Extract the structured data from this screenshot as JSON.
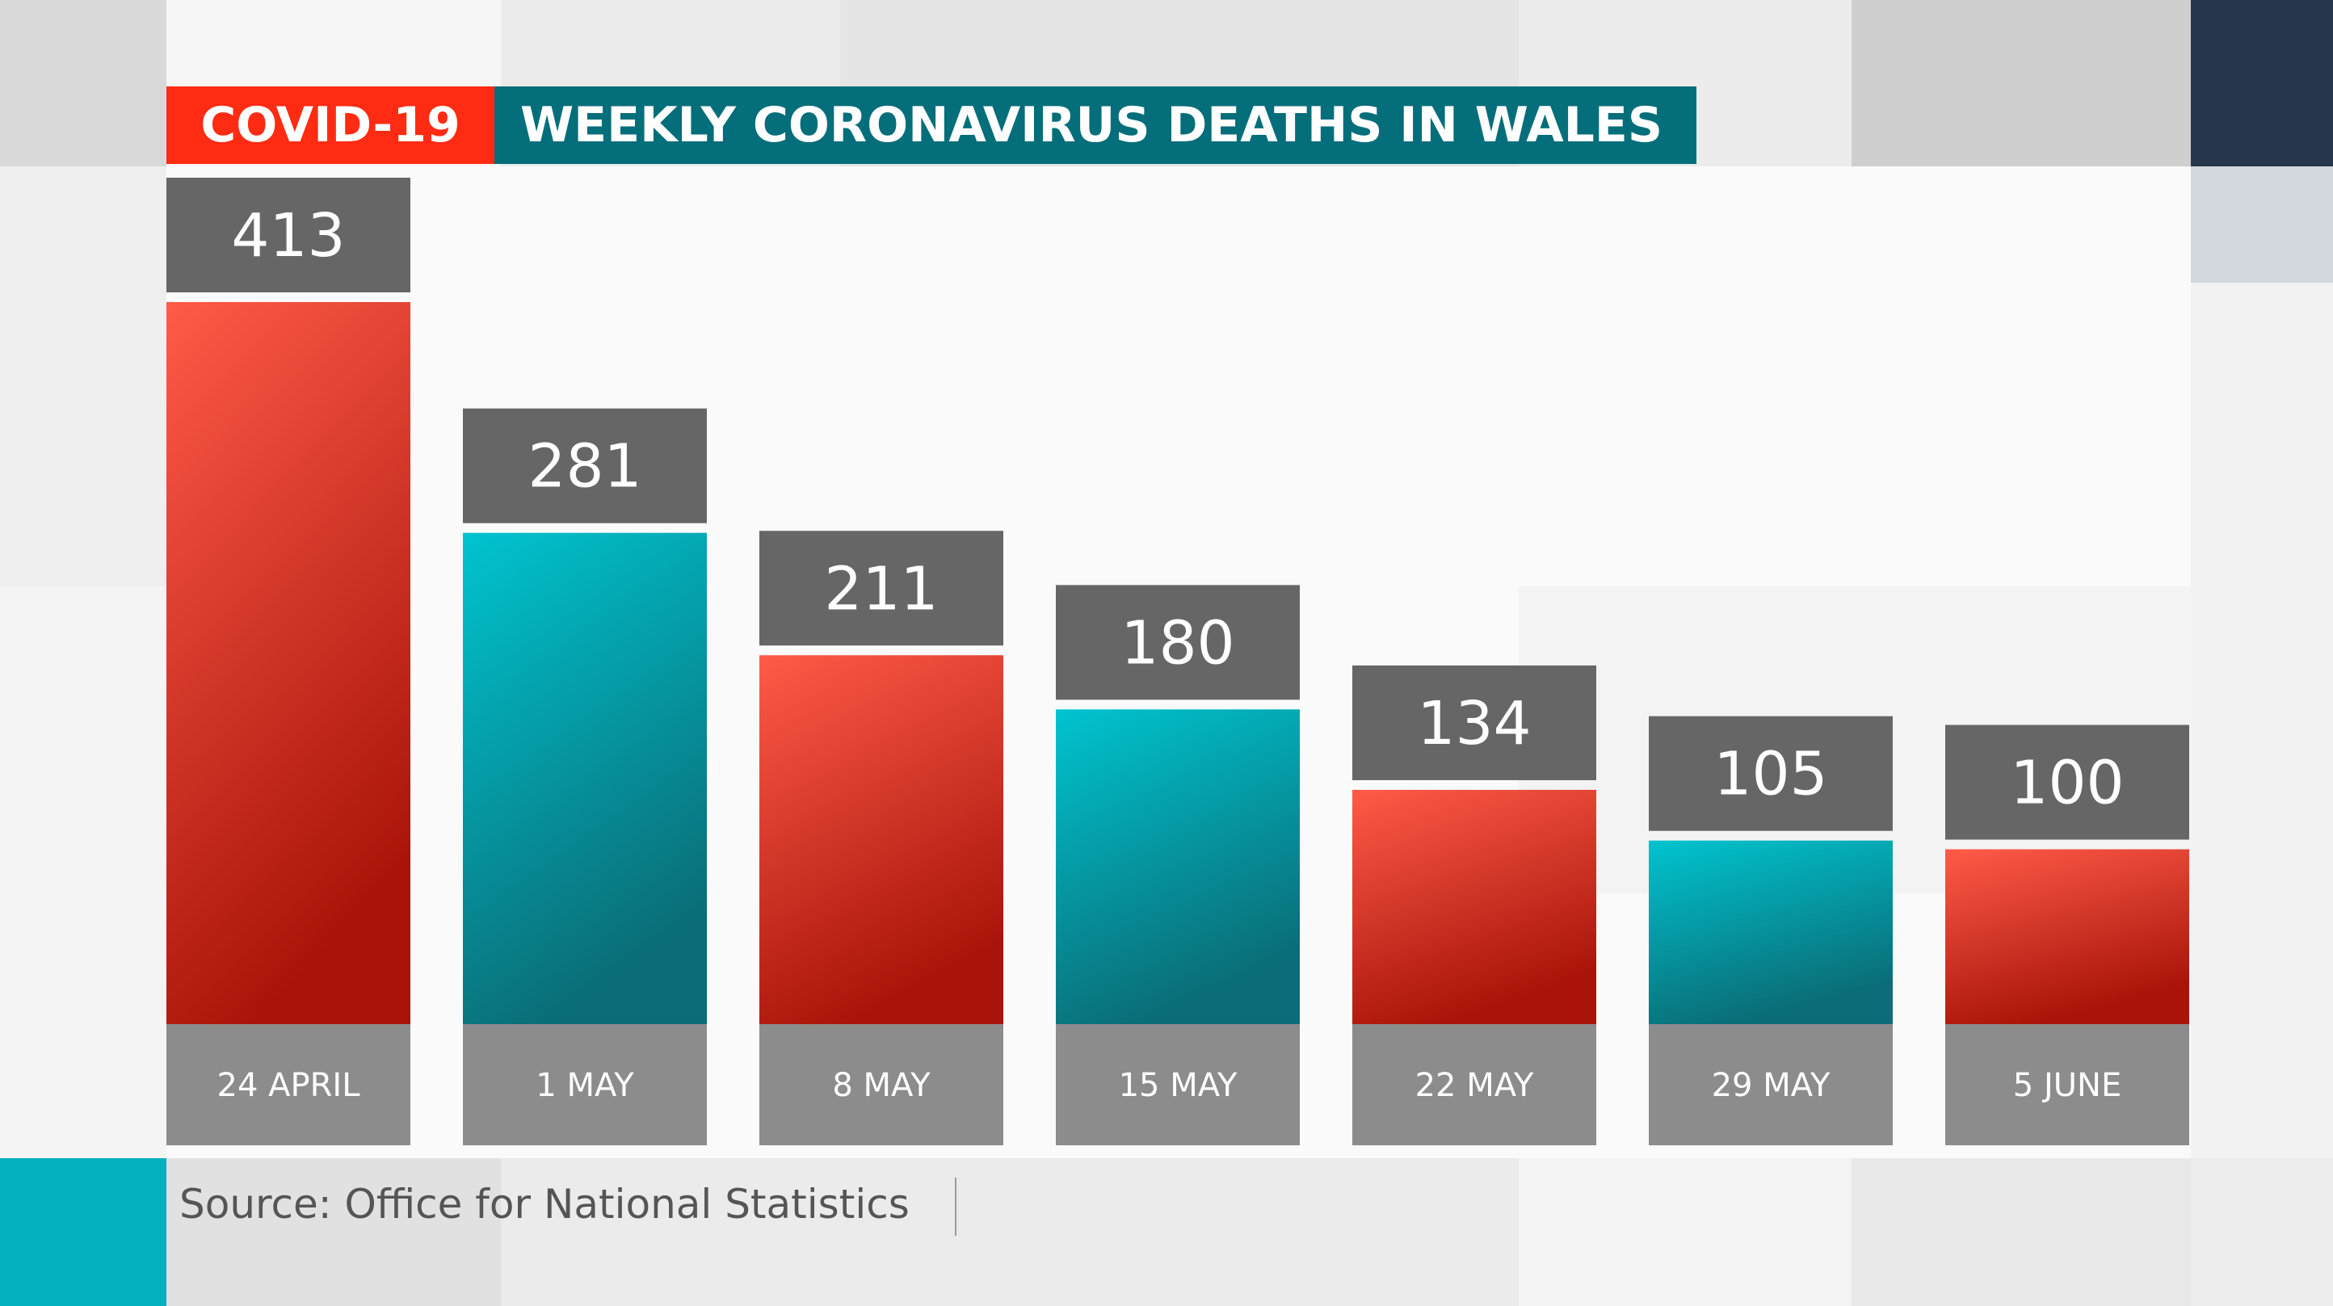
{
  "title": {
    "tag": "COVID-19",
    "headline": "WEEKLY CORONAVIRUS DEATHS IN WALES"
  },
  "colors": {
    "tag_bg": "#ff2b12",
    "headline_bg": "#046e7a",
    "red_bar_top": "#ff5b48",
    "red_bar_bottom": "#a9140a",
    "teal_bar_top": "#00c4cf",
    "teal_bar_bottom": "#0a6d77",
    "value_box": "#666666",
    "category_box": "#8c8c8c"
  },
  "source": "Source: Office for National Statistics",
  "chart_data": {
    "type": "bar",
    "title": "WEEKLY CORONAVIRUS DEATHS IN WALES",
    "xlabel": "",
    "ylabel": "",
    "categories": [
      "24 APRIL",
      "1 MAY",
      "8 MAY",
      "15 MAY",
      "22 MAY",
      "29 MAY",
      "5 JUNE"
    ],
    "values": [
      413,
      281,
      211,
      180,
      134,
      105,
      100
    ],
    "value_labels": [
      "413",
      "281",
      "211",
      "180",
      "134",
      "105",
      "100"
    ],
    "bar_colors": [
      "red",
      "teal",
      "red",
      "teal",
      "red",
      "teal",
      "red"
    ],
    "ylim": [
      0,
      413
    ],
    "grid": false,
    "legend": "none"
  }
}
